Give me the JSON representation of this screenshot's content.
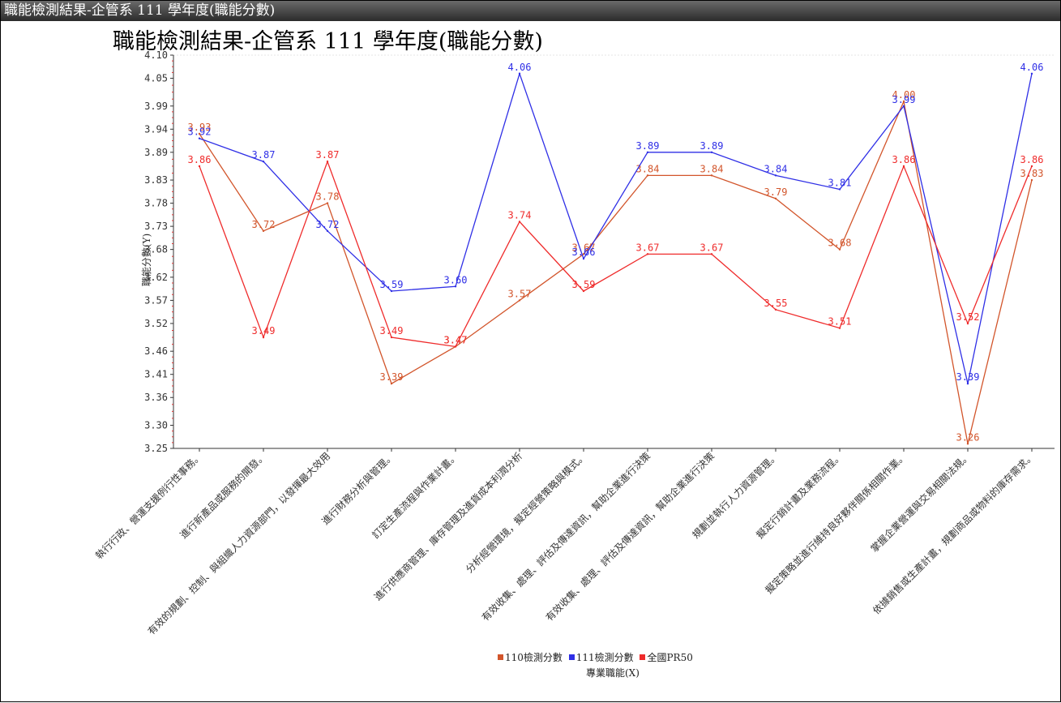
{
  "window": {
    "title": "職能檢測結果-企管系 111 學年度(職能分數)"
  },
  "chart_data": {
    "type": "line",
    "title": "職能檢測結果-企管系 111 學年度(職能分數)",
    "xlabel": "專業職能(X)",
    "ylabel": "職能分數(Y)",
    "ylim": [
      3.25,
      4.1
    ],
    "yticks": [
      "3.25",
      "3.30",
      "3.36",
      "3.41",
      "3.46",
      "3.52",
      "3.57",
      "3.62",
      "3.68",
      "3.73",
      "3.78",
      "3.83",
      "3.89",
      "3.94",
      "3.99",
      "4.05",
      "4.10"
    ],
    "categories": [
      "執行行政、營運支援例行性事務。",
      "進行新產品或服務的開發。",
      "有效的規劃、控制、與組織人力資源部門，以發揮最大效用",
      "進行財務分析與管理。",
      "訂定生產流程與作業計畫。",
      "進行供應商管理、庫存管理及進貨成本利潤分析",
      "分析經營環境，擬定經營策略與模式。",
      "有效收集、處理、評估及傳達資訊，幫助企業進行決策",
      "有效收集、處理、評估及傳達資訊，幫助企業進行決策",
      "規劃並執行人力資源管理。",
      "擬定行銷計畫及業務流程。",
      "擬定策略並進行維持良好夥伴關係相關作業。",
      "掌握企業營運與交易相關法規。",
      "依據銷售或生產計畫，規劃商品或物料的庫存需求。"
    ],
    "series": [
      {
        "name": "110檢測分數",
        "color": "#d2552b",
        "values": [
          3.93,
          3.72,
          3.78,
          3.39,
          3.47,
          3.57,
          3.67,
          3.84,
          3.84,
          3.79,
          3.68,
          4.0,
          3.26,
          3.83
        ]
      },
      {
        "name": "111檢測分數",
        "color": "#2f2fe6",
        "values": [
          3.92,
          3.87,
          3.72,
          3.59,
          3.6,
          4.06,
          3.66,
          3.89,
          3.89,
          3.84,
          3.81,
          3.99,
          3.39,
          4.06
        ]
      },
      {
        "name": "全國PR50",
        "color": "#ef2b2b",
        "values": [
          3.86,
          3.49,
          3.87,
          3.49,
          3.47,
          3.74,
          3.59,
          3.67,
          3.67,
          3.55,
          3.51,
          3.86,
          3.52,
          3.86
        ]
      }
    ],
    "legend_position": "bottom-center",
    "grid": false
  }
}
